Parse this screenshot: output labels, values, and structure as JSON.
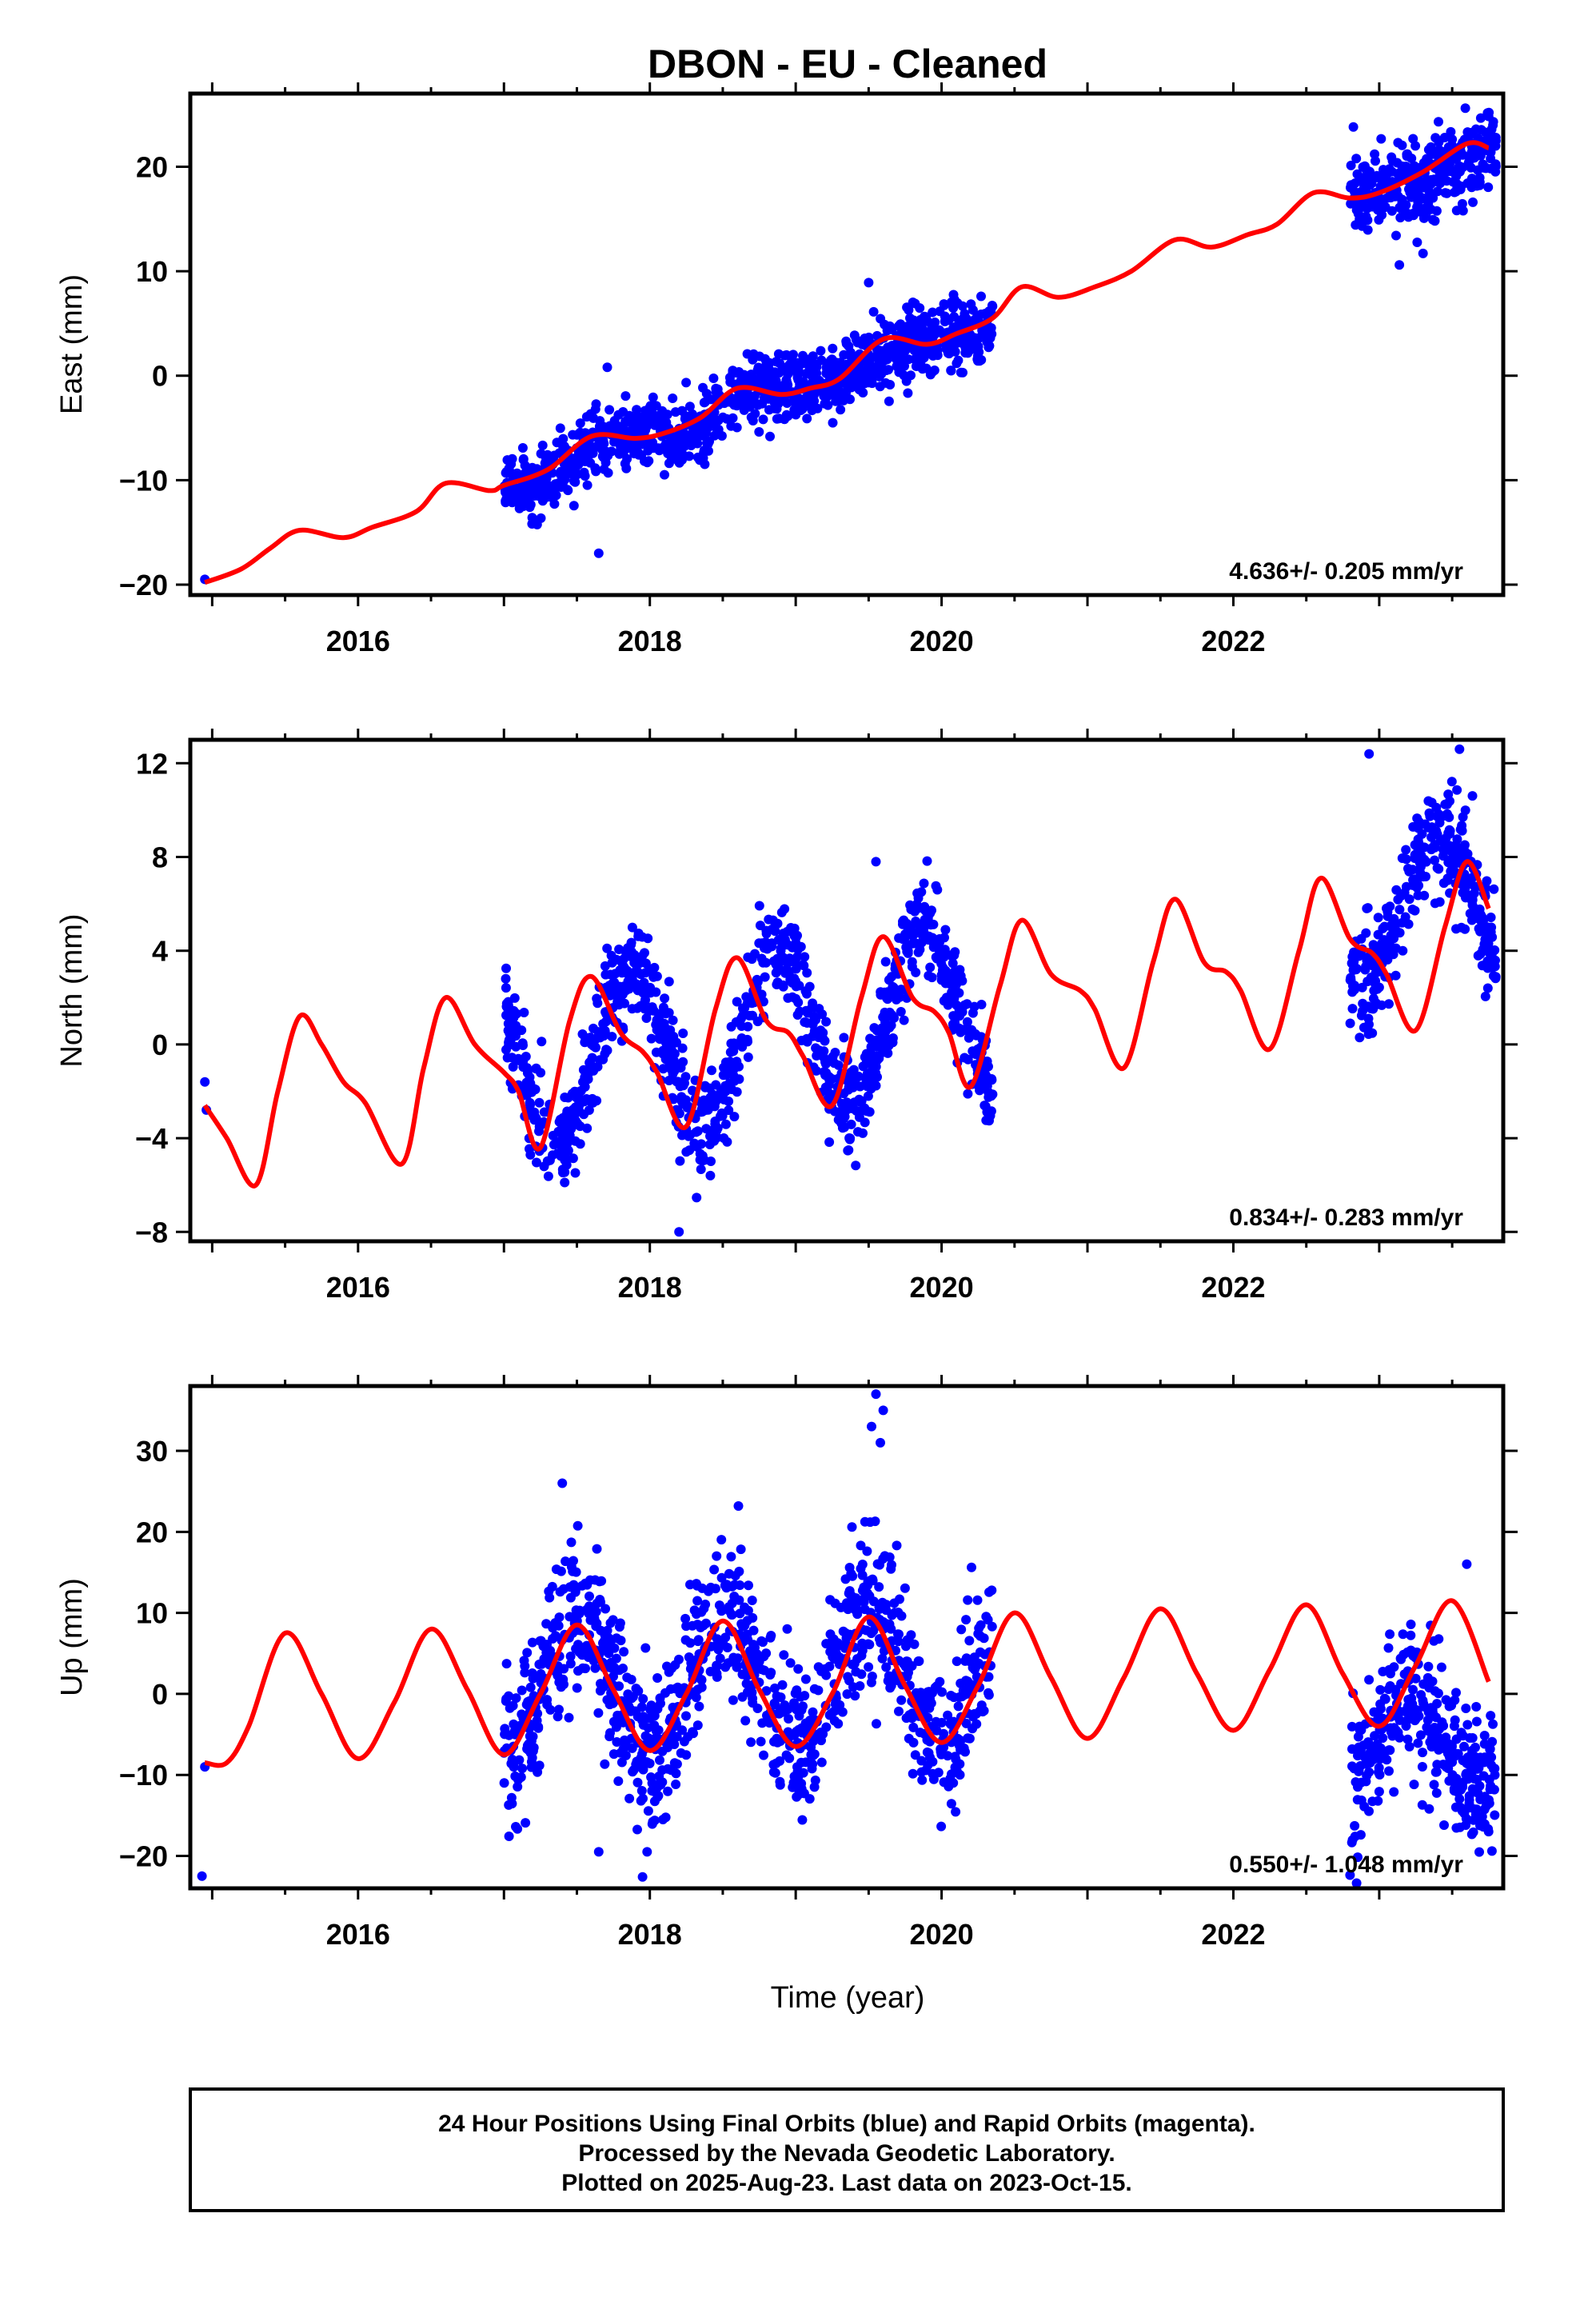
{
  "title": "DBON  - EU - Cleaned",
  "xlabel": "Time (year)",
  "footer": {
    "line1": "24 Hour Positions Using Final Orbits (blue) and Rapid Orbits (magenta).",
    "line2": "Processed by the Nevada Geodetic Laboratory.",
    "line3": "Plotted on 2025-Aug-23. Last data on 2023-Oct-15."
  },
  "colors": {
    "points": "#0000ff",
    "model": "#ff0000",
    "frame": "#000000"
  },
  "chart_data": [
    {
      "type": "scatter",
      "ylabel": "East (mm)",
      "rate_label": "4.636+/- 0.205 mm/yr",
      "xlim": [
        2014.85,
        2023.85
      ],
      "ylim": [
        -21,
        27
      ],
      "xticks": [
        2016,
        2018,
        2020,
        2022
      ],
      "yticks": [
        -20,
        -10,
        0,
        10,
        20
      ],
      "model": {
        "x": [
          2014.95,
          2015.2,
          2015.4,
          2015.6,
          2015.9,
          2016.1,
          2016.4,
          2016.6,
          2016.9,
          2017.0,
          2017.3,
          2017.6,
          2017.9,
          2018.1,
          2018.35,
          2018.6,
          2018.9,
          2019.1,
          2019.3,
          2019.6,
          2019.9,
          2020.1,
          2020.35,
          2020.55,
          2020.8,
          2021.05,
          2021.3,
          2021.6,
          2021.85,
          2022.1,
          2022.3,
          2022.55,
          2022.8,
          2023.0,
          2023.3,
          2023.6,
          2023.75
        ],
        "y": [
          -19.8,
          -18.5,
          -16.5,
          -14.8,
          -15.5,
          -14.5,
          -13,
          -10.3,
          -11,
          -10.5,
          -9,
          -5.8,
          -6,
          -5.5,
          -4,
          -1.2,
          -1.8,
          -1.2,
          -0.3,
          3.5,
          3,
          4,
          5.5,
          8.5,
          7.5,
          8.5,
          10,
          13,
          12.3,
          13.5,
          14.5,
          17.5,
          17,
          17.5,
          19.5,
          22.2,
          21.8
        ]
      },
      "segments": [
        {
          "x0": 2017.0,
          "x1": 2020.35,
          "a": -10.2,
          "b": 4.6,
          "noise": 1.7,
          "seas": 0.9,
          "phase": 0.5,
          "n": 1050
        },
        {
          "x0": 2022.8,
          "x1": 2023.8,
          "a": 16.8,
          "b": 4.6,
          "noise": 1.9,
          "seas": 0.8,
          "phase": 0.5,
          "n": 330
        }
      ],
      "outliers": [
        {
          "x": 2014.95,
          "y": -19.5
        },
        {
          "x": 2017.65,
          "y": -17
        },
        {
          "x": 2019.5,
          "y": 8.9
        },
        {
          "x": 2023.3,
          "y": 11.7
        }
      ]
    },
    {
      "type": "scatter",
      "ylabel": "North (mm)",
      "rate_label": "0.834+/- 0.283 mm/yr",
      "xlim": [
        2014.85,
        2023.85
      ],
      "ylim": [
        -8.4,
        13.0
      ],
      "xticks": [
        2016,
        2018,
        2020,
        2022
      ],
      "yticks": [
        -8,
        -4,
        0,
        4,
        8,
        12
      ],
      "model": {
        "x": [
          2014.95,
          2015.1,
          2015.3,
          2015.45,
          2015.6,
          2015.75,
          2015.9,
          2016.05,
          2016.3,
          2016.45,
          2016.6,
          2016.8,
          2017.0,
          2017.1,
          2017.25,
          2017.45,
          2017.6,
          2017.8,
          2017.95,
          2018.05,
          2018.25,
          2018.45,
          2018.6,
          2018.8,
          2018.95,
          2019.05,
          2019.25,
          2019.45,
          2019.6,
          2019.8,
          2019.95,
          2020.05,
          2020.2,
          2020.4,
          2020.55,
          2020.75,
          2020.95,
          2021.05,
          2021.25,
          2021.45,
          2021.6,
          2021.8,
          2021.95,
          2022.05,
          2022.25,
          2022.45,
          2022.6,
          2022.8,
          2022.95,
          2023.05,
          2023.25,
          2023.45,
          2023.6,
          2023.75
        ],
        "y": [
          -2.6,
          -4,
          -6,
          -2,
          1.2,
          0,
          -1.6,
          -2.5,
          -5.1,
          -1,
          2,
          0,
          -1.2,
          -2,
          -4.4,
          1,
          2.9,
          0.5,
          -0.3,
          -1.2,
          -3.5,
          1.5,
          3.7,
          1,
          0.5,
          -0.5,
          -2.6,
          2,
          4.6,
          2,
          1.4,
          0.5,
          -1.8,
          2.5,
          5.3,
          3,
          2.3,
          1.5,
          -1,
          3.5,
          6.2,
          3.5,
          3.1,
          2.3,
          -0.2,
          4,
          7.1,
          4.5,
          3.9,
          3,
          0.6,
          5,
          7.8,
          5.8
        ]
      },
      "segments": [
        {
          "x0": 2017.0,
          "x1": 2020.35,
          "a": -1.0,
          "b": 0.83,
          "noise": 1.05,
          "seas": 3.5,
          "phase": 0.62,
          "n": 1050
        },
        {
          "x0": 2022.8,
          "x1": 2023.8,
          "a": 5.5,
          "b": 0.83,
          "noise": 1.1,
          "seas": 3.0,
          "phase": 0.15,
          "n": 330
        }
      ],
      "outliers": [
        {
          "x": 2014.95,
          "y": -1.6
        },
        {
          "x": 2014.96,
          "y": -2.8
        },
        {
          "x": 2018.2,
          "y": -8
        },
        {
          "x": 2019.55,
          "y": 7.8
        },
        {
          "x": 2022.93,
          "y": 12.4
        },
        {
          "x": 2023.55,
          "y": 12.6
        }
      ]
    },
    {
      "type": "scatter",
      "ylabel": "Up (mm)",
      "rate_label": "0.550+/- 1.048 mm/yr",
      "xlim": [
        2014.85,
        2023.85
      ],
      "ylim": [
        -24,
        38
      ],
      "xticks": [
        2016,
        2018,
        2020,
        2022
      ],
      "yticks": [
        -20,
        -10,
        0,
        10,
        20,
        30
      ],
      "model": {
        "x": [
          2014.95,
          2015.1,
          2015.25,
          2015.5,
          2015.75,
          2016.0,
          2016.25,
          2016.5,
          2016.75,
          2017.0,
          2017.25,
          2017.5,
          2017.75,
          2018.0,
          2018.25,
          2018.5,
          2018.75,
          2019.0,
          2019.25,
          2019.5,
          2019.75,
          2020.0,
          2020.25,
          2020.5,
          2020.75,
          2021.0,
          2021.25,
          2021.5,
          2021.75,
          2022.0,
          2022.25,
          2022.5,
          2022.75,
          2023.0,
          2023.25,
          2023.5,
          2023.75
        ],
        "y": [
          -8.5,
          -8.5,
          -4,
          7.5,
          0,
          -8,
          -1,
          8,
          0.5,
          -7.5,
          0,
          8.5,
          0.5,
          -7,
          0,
          9,
          0.5,
          -6.5,
          0,
          9.5,
          1,
          -6,
          1,
          10,
          2,
          -5.5,
          2,
          10.5,
          2.5,
          -4.5,
          3,
          11,
          2.5,
          -4,
          3.5,
          11.5,
          1.5
        ]
      },
      "segments": [
        {
          "x0": 2017.0,
          "x1": 2020.35,
          "a": 1.0,
          "b": 0.55,
          "noise": 4.6,
          "seas": 8.5,
          "phase": 0.25,
          "n": 1050
        },
        {
          "x0": 2022.8,
          "x1": 2023.8,
          "a": -7.0,
          "b": 0.55,
          "noise": 4.2,
          "seas": 6.0,
          "phase": 0.95,
          "n": 330
        }
      ],
      "outliers": [
        {
          "x": 2014.95,
          "y": -9
        },
        {
          "x": 2014.93,
          "y": -22.5
        },
        {
          "x": 2017.65,
          "y": -19.5
        },
        {
          "x": 2017.95,
          "y": -22.6
        },
        {
          "x": 2019.55,
          "y": 37
        },
        {
          "x": 2019.6,
          "y": 35
        },
        {
          "x": 2019.52,
          "y": 33
        },
        {
          "x": 2019.58,
          "y": 31
        },
        {
          "x": 2017.4,
          "y": 26
        },
        {
          "x": 2023.6,
          "y": 16
        }
      ]
    }
  ]
}
